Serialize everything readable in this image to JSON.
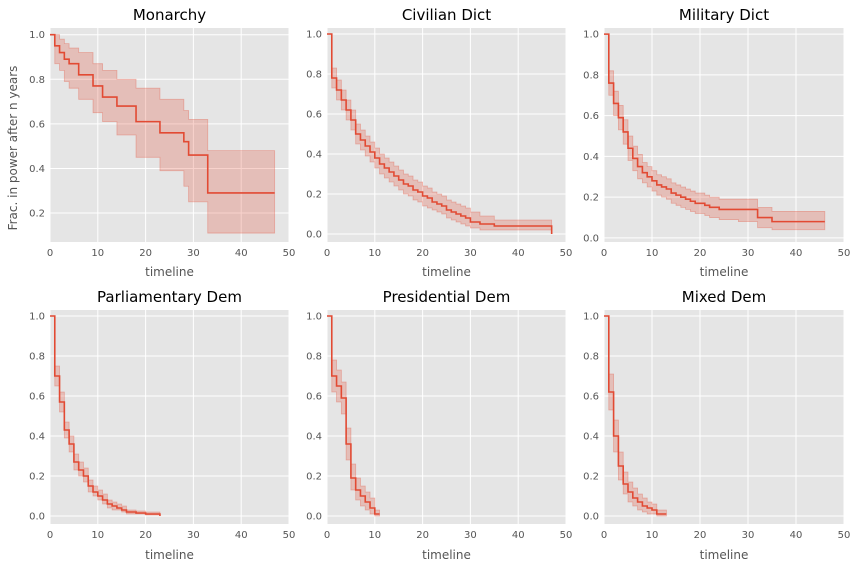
{
  "ylabel_shared": "Frac. in power after n years",
  "colors": {
    "line": "#e24a33",
    "band": "#e24a33",
    "panel_bg": "#e5e5e5",
    "grid": "#ffffff"
  },
  "chart_data": [
    {
      "type": "line",
      "title": "Monarchy",
      "xlabel": "timeline",
      "xlim": [
        0,
        50
      ],
      "ylim": [
        0.07,
        1.03
      ],
      "xticks": [
        0,
        10,
        20,
        30,
        40,
        50
      ],
      "yticks": [
        0.2,
        0.4,
        0.6,
        0.8,
        1.0
      ],
      "grid": true,
      "series": [
        {
          "step_x": [
            0,
            1,
            2,
            3,
            4,
            6,
            9,
            11,
            14,
            18,
            23,
            28,
            29,
            33,
            47
          ],
          "step_y": [
            1.0,
            0.95,
            0.92,
            0.89,
            0.87,
            0.82,
            0.77,
            0.72,
            0.68,
            0.61,
            0.56,
            0.52,
            0.46,
            0.29,
            0.29
          ],
          "lower": [
            1.0,
            0.87,
            0.84,
            0.79,
            0.76,
            0.71,
            0.65,
            0.61,
            0.55,
            0.45,
            0.39,
            0.32,
            0.25,
            0.11,
            0.11
          ],
          "upper": [
            1.0,
            1.0,
            0.98,
            0.96,
            0.94,
            0.92,
            0.87,
            0.84,
            0.8,
            0.76,
            0.71,
            0.66,
            0.62,
            0.48,
            0.48
          ]
        }
      ]
    },
    {
      "type": "line",
      "title": "Civilian Dict",
      "xlabel": "timeline",
      "xlim": [
        0,
        50
      ],
      "ylim": [
        -0.04,
        1.03
      ],
      "xticks": [
        0,
        10,
        20,
        30,
        40,
        50
      ],
      "yticks": [
        0.0,
        0.2,
        0.4,
        0.6,
        0.8,
        1.0
      ],
      "grid": true,
      "series": [
        {
          "step_x": [
            0,
            1,
            2,
            3,
            4,
            5,
            6,
            7,
            8,
            9,
            10,
            11,
            12,
            13,
            14,
            15,
            16,
            17,
            18,
            19,
            20,
            21,
            22,
            23,
            24,
            25,
            26,
            27,
            28,
            29,
            30,
            32,
            35,
            47
          ],
          "step_y": [
            1.0,
            0.78,
            0.72,
            0.67,
            0.62,
            0.57,
            0.5,
            0.47,
            0.44,
            0.41,
            0.38,
            0.35,
            0.33,
            0.31,
            0.29,
            0.27,
            0.25,
            0.24,
            0.22,
            0.21,
            0.19,
            0.18,
            0.16,
            0.15,
            0.14,
            0.12,
            0.11,
            0.1,
            0.09,
            0.08,
            0.06,
            0.05,
            0.04,
            0.0
          ],
          "lower": [
            1.0,
            0.73,
            0.67,
            0.62,
            0.57,
            0.52,
            0.45,
            0.42,
            0.39,
            0.36,
            0.33,
            0.3,
            0.28,
            0.26,
            0.24,
            0.22,
            0.2,
            0.19,
            0.17,
            0.16,
            0.14,
            0.13,
            0.12,
            0.11,
            0.1,
            0.08,
            0.07,
            0.06,
            0.05,
            0.04,
            0.03,
            0.02,
            0.02,
            0.0
          ],
          "upper": [
            1.0,
            0.83,
            0.77,
            0.72,
            0.67,
            0.62,
            0.55,
            0.52,
            0.49,
            0.46,
            0.43,
            0.4,
            0.38,
            0.36,
            0.34,
            0.32,
            0.3,
            0.29,
            0.27,
            0.26,
            0.24,
            0.23,
            0.21,
            0.2,
            0.19,
            0.17,
            0.16,
            0.15,
            0.14,
            0.13,
            0.11,
            0.09,
            0.07,
            0.04
          ]
        }
      ]
    },
    {
      "type": "line",
      "title": "Military Dict",
      "xlabel": "timeline",
      "xlim": [
        0,
        50
      ],
      "ylim": [
        -0.02,
        1.03
      ],
      "xticks": [
        0,
        10,
        20,
        30,
        40,
        50
      ],
      "yticks": [
        0.0,
        0.2,
        0.4,
        0.6,
        0.8,
        1.0
      ],
      "grid": true,
      "series": [
        {
          "step_x": [
            0,
            1,
            2,
            3,
            4,
            5,
            6,
            7,
            8,
            9,
            10,
            11,
            12,
            13,
            14,
            15,
            16,
            17,
            18,
            19,
            20,
            21,
            22,
            24,
            26,
            28,
            32,
            35,
            46
          ],
          "step_y": [
            1.0,
            0.76,
            0.66,
            0.59,
            0.52,
            0.44,
            0.39,
            0.35,
            0.32,
            0.3,
            0.28,
            0.26,
            0.25,
            0.24,
            0.22,
            0.21,
            0.2,
            0.19,
            0.18,
            0.17,
            0.17,
            0.16,
            0.15,
            0.14,
            0.14,
            0.14,
            0.1,
            0.08,
            0.08
          ],
          "lower": [
            1.0,
            0.7,
            0.6,
            0.53,
            0.46,
            0.38,
            0.33,
            0.29,
            0.27,
            0.25,
            0.23,
            0.21,
            0.2,
            0.19,
            0.17,
            0.16,
            0.15,
            0.14,
            0.13,
            0.12,
            0.12,
            0.11,
            0.1,
            0.09,
            0.09,
            0.08,
            0.05,
            0.04,
            0.04
          ],
          "upper": [
            1.0,
            0.82,
            0.72,
            0.65,
            0.58,
            0.5,
            0.45,
            0.41,
            0.37,
            0.35,
            0.33,
            0.31,
            0.3,
            0.29,
            0.27,
            0.26,
            0.25,
            0.24,
            0.23,
            0.22,
            0.22,
            0.21,
            0.2,
            0.19,
            0.19,
            0.19,
            0.15,
            0.13,
            0.13
          ]
        }
      ]
    },
    {
      "type": "line",
      "title": "Parliamentary Dem",
      "xlabel": "timeline",
      "xlim": [
        0,
        50
      ],
      "ylim": [
        -0.04,
        1.03
      ],
      "xticks": [
        0,
        10,
        20,
        30,
        40,
        50
      ],
      "yticks": [
        0.0,
        0.2,
        0.4,
        0.6,
        0.8,
        1.0
      ],
      "grid": true,
      "series": [
        {
          "step_x": [
            0,
            1,
            2,
            3,
            4,
            5,
            6,
            7,
            8,
            9,
            10,
            11,
            12,
            13,
            14,
            15,
            16,
            18,
            20,
            23
          ],
          "step_y": [
            1.0,
            0.7,
            0.57,
            0.43,
            0.36,
            0.27,
            0.23,
            0.2,
            0.15,
            0.12,
            0.1,
            0.08,
            0.06,
            0.05,
            0.04,
            0.03,
            0.02,
            0.015,
            0.01,
            0.0
          ],
          "lower": [
            1.0,
            0.65,
            0.52,
            0.39,
            0.32,
            0.23,
            0.2,
            0.17,
            0.12,
            0.1,
            0.08,
            0.06,
            0.04,
            0.03,
            0.03,
            0.02,
            0.01,
            0.01,
            0.005,
            0.0
          ],
          "upper": [
            1.0,
            0.75,
            0.62,
            0.47,
            0.4,
            0.31,
            0.27,
            0.24,
            0.18,
            0.15,
            0.13,
            0.11,
            0.08,
            0.07,
            0.06,
            0.05,
            0.03,
            0.025,
            0.02,
            0.01
          ]
        }
      ]
    },
    {
      "type": "line",
      "title": "Presidential Dem",
      "xlabel": "timeline",
      "xlim": [
        0,
        50
      ],
      "ylim": [
        -0.04,
        1.03
      ],
      "xticks": [
        0,
        10,
        20,
        30,
        40,
        50
      ],
      "yticks": [
        0.0,
        0.2,
        0.4,
        0.6,
        0.8,
        1.0
      ],
      "grid": true,
      "series": [
        {
          "step_x": [
            0,
            1,
            2,
            3,
            4,
            5,
            6,
            7,
            8,
            9,
            10,
            11
          ],
          "step_y": [
            1.0,
            0.7,
            0.65,
            0.59,
            0.36,
            0.19,
            0.13,
            0.1,
            0.07,
            0.04,
            0.01,
            0.01
          ],
          "lower": [
            1.0,
            0.62,
            0.57,
            0.51,
            0.28,
            0.13,
            0.08,
            0.05,
            0.03,
            0.01,
            0.0,
            0.0
          ],
          "upper": [
            1.0,
            0.78,
            0.73,
            0.67,
            0.44,
            0.26,
            0.19,
            0.15,
            0.12,
            0.09,
            0.03,
            0.03
          ]
        }
      ]
    },
    {
      "type": "line",
      "title": "Mixed Dem",
      "xlabel": "timeline",
      "xlim": [
        0,
        50
      ],
      "ylim": [
        -0.04,
        1.03
      ],
      "xticks": [
        0,
        10,
        20,
        30,
        40,
        50
      ],
      "yticks": [
        0.0,
        0.2,
        0.4,
        0.6,
        0.8,
        1.0
      ],
      "grid": true,
      "series": [
        {
          "step_x": [
            0,
            1,
            2,
            3,
            4,
            5,
            6,
            7,
            8,
            9,
            10,
            11,
            13
          ],
          "step_y": [
            1.0,
            0.62,
            0.4,
            0.25,
            0.16,
            0.12,
            0.09,
            0.07,
            0.05,
            0.04,
            0.03,
            0.01,
            0.01
          ],
          "lower": [
            1.0,
            0.53,
            0.32,
            0.18,
            0.11,
            0.07,
            0.05,
            0.03,
            0.02,
            0.01,
            0.01,
            0.0,
            0.0
          ],
          "upper": [
            1.0,
            0.71,
            0.48,
            0.32,
            0.22,
            0.17,
            0.14,
            0.11,
            0.09,
            0.07,
            0.06,
            0.03,
            0.03
          ]
        }
      ]
    }
  ]
}
